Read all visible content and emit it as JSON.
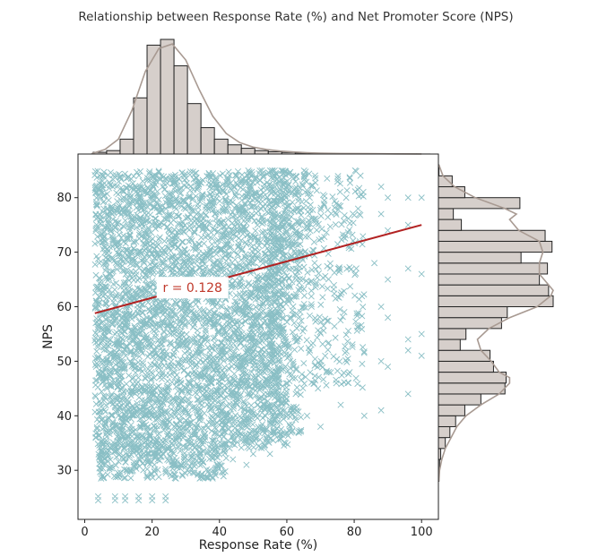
{
  "chart_data": {
    "type": "scatter",
    "title": "Relationship between Response Rate (%) and Net Promoter Score (NPS)",
    "xlabel": "Response Rate (%)",
    "ylabel": "NPS",
    "xlim": [
      -2,
      105
    ],
    "ylim": [
      21,
      88
    ],
    "xticks": [
      0,
      20,
      40,
      60,
      80,
      100
    ],
    "yticks": [
      30,
      40,
      50,
      60,
      70,
      80
    ],
    "regression": {
      "x": [
        3,
        100
      ],
      "y": [
        58.8,
        75.0
      ],
      "color": "#b22222"
    },
    "annotation": {
      "text": "r = 0.128",
      "x": 32,
      "y": 63.5
    },
    "colors": {
      "points": "#2a8a96",
      "hist_fill": "#d6cfcb",
      "hist_edge": "#222222",
      "kde": "#a89a92"
    },
    "top_histogram": {
      "bin_edges": [
        2.5,
        6.5,
        10.5,
        14.5,
        18.5,
        22.5,
        26.5,
        30.5,
        34.5,
        38.5,
        42.5,
        46.5,
        50.5,
        54.5,
        58.5,
        62.5,
        66.5,
        70.5,
        74.5,
        78.5,
        82.5,
        86.5,
        90.5,
        94.5,
        98.5,
        102.5
      ],
      "counts": [
        1.5,
        3.0,
        13.0,
        49.0,
        95.0,
        100.0,
        77.0,
        44.0,
        23.0,
        13.0,
        8.0,
        5.0,
        3.0,
        2.0,
        1.4,
        0.9,
        0.6,
        0.4,
        0.25,
        0.15,
        0.1,
        0.1,
        0.05,
        0.05,
        0.05
      ],
      "kde": [
        [
          2,
          0.3
        ],
        [
          6,
          4
        ],
        [
          10,
          13
        ],
        [
          14,
          38
        ],
        [
          18,
          72
        ],
        [
          22,
          92
        ],
        [
          26,
          96
        ],
        [
          30,
          82
        ],
        [
          34,
          56
        ],
        [
          38,
          33
        ],
        [
          42,
          18
        ],
        [
          46,
          10
        ],
        [
          50,
          6
        ],
        [
          54,
          4
        ],
        [
          58,
          2.6
        ],
        [
          62,
          1.8
        ],
        [
          66,
          1.2
        ],
        [
          70,
          0.8
        ],
        [
          76,
          0.5
        ],
        [
          84,
          0.3
        ],
        [
          92,
          0.15
        ],
        [
          100,
          0.05
        ]
      ]
    },
    "right_histogram": {
      "bin_edges": [
        28,
        30,
        32,
        34,
        36,
        38,
        40,
        42,
        44,
        46,
        48,
        50,
        52,
        54,
        56,
        58,
        60,
        62,
        64,
        66,
        68,
        70,
        72,
        74,
        76,
        78,
        80,
        82,
        84,
        86
      ],
      "counts": [
        0.5,
        1.0,
        2.0,
        6.0,
        10.0,
        15.0,
        23.0,
        37.0,
        58.0,
        59.0,
        48.0,
        45.0,
        19.0,
        24.0,
        55.0,
        60.0,
        100.0,
        96.0,
        88.0,
        95.0,
        72.0,
        99.0,
        93.0,
        20.0,
        13.0,
        71.0,
        23.0,
        12.0,
        0.5
      ],
      "kde": [
        [
          28,
          0.4
        ],
        [
          30,
          1
        ],
        [
          32,
          3
        ],
        [
          34,
          6
        ],
        [
          36,
          11
        ],
        [
          38,
          16
        ],
        [
          40,
          24
        ],
        [
          42,
          37
        ],
        [
          44,
          53
        ],
        [
          46,
          62
        ],
        [
          47,
          62
        ],
        [
          48,
          53
        ],
        [
          50,
          46
        ],
        [
          52,
          37
        ],
        [
          54,
          34
        ],
        [
          56,
          44
        ],
        [
          58,
          62
        ],
        [
          60,
          86
        ],
        [
          62,
          98
        ],
        [
          63,
          100
        ],
        [
          64,
          96
        ],
        [
          66,
          88
        ],
        [
          68,
          88
        ],
        [
          70,
          91
        ],
        [
          72,
          88
        ],
        [
          74,
          70
        ],
        [
          76,
          62
        ],
        [
          77,
          68
        ],
        [
          78,
          58
        ],
        [
          80,
          32
        ],
        [
          82,
          14
        ],
        [
          84,
          4
        ],
        [
          86,
          0.5
        ]
      ]
    }
  }
}
